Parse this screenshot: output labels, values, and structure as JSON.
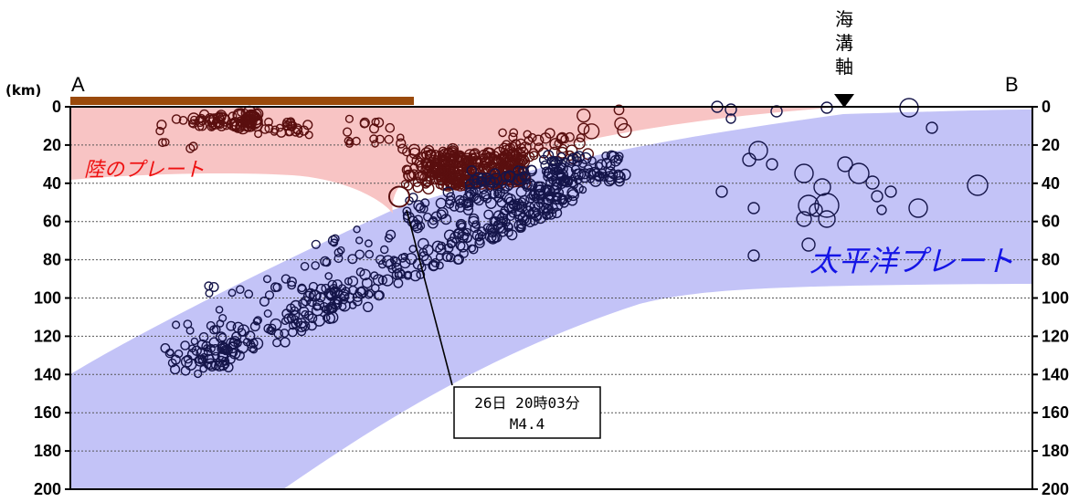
{
  "chart_data": {
    "type": "scatter",
    "title": "",
    "ylabel_unit": "(km)",
    "ylim": [
      0,
      200
    ],
    "y_ticks": [
      0,
      20,
      40,
      60,
      80,
      100,
      120,
      140,
      160,
      180,
      200
    ],
    "section_start_label": "A",
    "section_end_label": "B",
    "trench_axis_label": "海溝軸",
    "continental_plate_label": "陸のプレート",
    "pacific_plate_label": "太平洋プレート",
    "highlight_event": {
      "time_label": "26日 20時03分",
      "magnitude_label": "M4.4",
      "depth_km": 47
    },
    "colors": {
      "land_bar": "#9a4a0c",
      "continental_plate": "#f8c4c4",
      "pacific_plate": "#c3c3f7",
      "shallow_events": "#5a0f0f",
      "slab_events": "#15154a",
      "land_plate_text": "#ee1010",
      "pacific_plate_text": "#1414e6"
    }
  }
}
